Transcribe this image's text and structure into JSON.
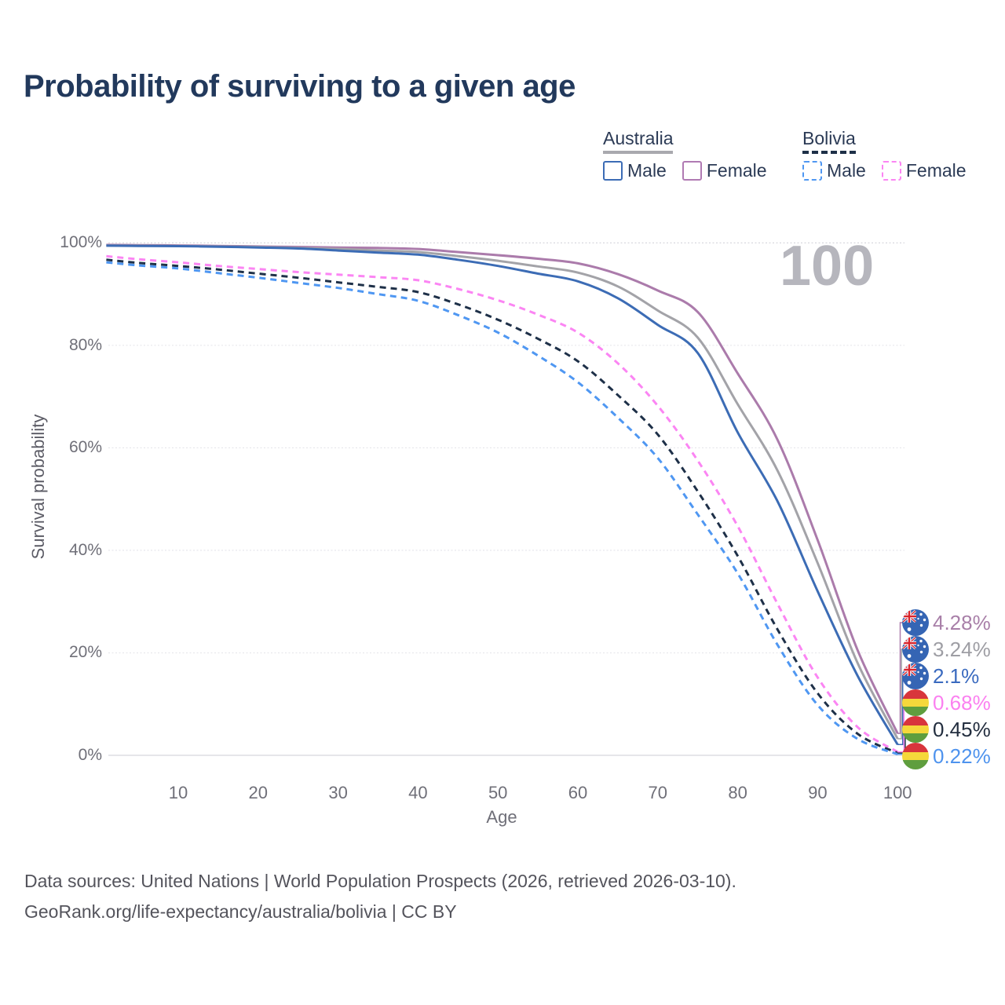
{
  "title": "Probability of surviving to a given age",
  "watermark": "100",
  "legend": {
    "position": "top-right",
    "groups": [
      {
        "name": "Australia",
        "underline_style": "solid",
        "underline_color": "#a9a9ae",
        "items": [
          {
            "label": "Male",
            "color": "#3c6cb5",
            "dashed": false
          },
          {
            "label": "Female",
            "color": "#b07ab3",
            "dashed": false
          }
        ]
      },
      {
        "name": "Bolivia",
        "underline_style": "dashed",
        "underline_color": "#1e3048",
        "items": [
          {
            "label": "Male",
            "color": "#4f97f2",
            "dashed": true
          },
          {
            "label": "Female",
            "color": "#fb85f3",
            "dashed": true
          }
        ]
      }
    ]
  },
  "chart_data": {
    "type": "line",
    "title": "Probability of surviving to a given age",
    "xlabel": "Age",
    "ylabel": "Survival probability",
    "xlim": [
      0,
      100
    ],
    "ylim": [
      0,
      100
    ],
    "grid": "horizontal",
    "x_ticks": [
      {
        "value": 10,
        "label": "10"
      },
      {
        "value": 20,
        "label": "20"
      },
      {
        "value": 30,
        "label": "30"
      },
      {
        "value": 40,
        "label": "40"
      },
      {
        "value": 50,
        "label": "50"
      },
      {
        "value": 60,
        "label": "60"
      },
      {
        "value": 70,
        "label": "70"
      },
      {
        "value": 80,
        "label": "80"
      },
      {
        "value": 90,
        "label": "90"
      },
      {
        "value": 100,
        "label": "100"
      }
    ],
    "y_ticks": [
      {
        "value": 0,
        "label": "0%"
      },
      {
        "value": 20,
        "label": "20%"
      },
      {
        "value": 40,
        "label": "40%"
      },
      {
        "value": 60,
        "label": "60%"
      },
      {
        "value": 80,
        "label": "80%"
      },
      {
        "value": 100,
        "label": "100%"
      }
    ],
    "x": [
      1,
      5,
      10,
      15,
      20,
      25,
      30,
      35,
      40,
      45,
      50,
      55,
      60,
      65,
      70,
      75,
      80,
      85,
      90,
      95,
      100
    ],
    "series": [
      {
        "name": "Australia Female",
        "color": "#ab7bab",
        "dashed": false,
        "flag": "australia",
        "end_label": "4.28%",
        "end_label_color": "#a87fa8",
        "values": [
          99.6,
          99.55,
          99.5,
          99.4,
          99.3,
          99.2,
          99.1,
          99.0,
          98.8,
          98.2,
          97.6,
          96.9,
          96.0,
          93.9,
          90.7,
          86.5,
          74.5,
          61.5,
          42.0,
          20.5,
          4.28
        ]
      },
      {
        "name": "Australia Both sexes",
        "color": "#a3a3a8",
        "dashed": false,
        "flag": "australia",
        "end_label": "3.24%",
        "end_label_color": "#9e9ea4",
        "values": [
          99.5,
          99.45,
          99.4,
          99.3,
          99.2,
          99.0,
          98.8,
          98.5,
          98.2,
          97.4,
          96.5,
          95.4,
          94.2,
          91.5,
          86.8,
          81.5,
          68.5,
          55.5,
          37.5,
          18.0,
          3.24
        ]
      },
      {
        "name": "Australia Male",
        "color": "#3c6cb5",
        "dashed": false,
        "flag": "australia",
        "end_label": "2.1%",
        "end_label_color": "#3a6abf",
        "values": [
          99.45,
          99.4,
          99.35,
          99.25,
          99.1,
          98.9,
          98.5,
          98.1,
          97.7,
          96.7,
          95.5,
          94.0,
          92.5,
          89.2,
          84.0,
          78.5,
          63.0,
          49.5,
          32.0,
          15.5,
          2.1
        ]
      },
      {
        "name": "Bolivia Female",
        "color": "#fb85f3",
        "dashed": true,
        "flag": "bolivia",
        "end_label": "0.68%",
        "end_label_color": "#fb80f0",
        "values": [
          97.4,
          96.8,
          96.2,
          95.5,
          94.9,
          94.3,
          93.8,
          93.3,
          92.7,
          91.0,
          88.8,
          86.0,
          82.5,
          76.5,
          68.2,
          57.5,
          44.7,
          29.5,
          15.2,
          5.5,
          0.68
        ]
      },
      {
        "name": "Bolivia Both sexes",
        "color": "#1e3048",
        "dashed": true,
        "flag": "bolivia",
        "end_label": "0.45%",
        "end_label_color": "#232e3f",
        "values": [
          96.7,
          96.1,
          95.5,
          94.8,
          94.0,
          93.2,
          92.3,
          91.4,
          90.4,
          88.0,
          85.0,
          81.3,
          76.9,
          70.3,
          62.6,
          51.5,
          38.9,
          24.5,
          12.1,
          4.2,
          0.45
        ]
      },
      {
        "name": "Bolivia Male",
        "color": "#4f97f2",
        "dashed": true,
        "flag": "bolivia",
        "end_label": "0.22%",
        "end_label_color": "#4e93ee",
        "values": [
          96.2,
          95.6,
          95.0,
          94.1,
          93.2,
          92.2,
          91.2,
          90.0,
          88.7,
          85.9,
          82.5,
          78.0,
          72.8,
          65.9,
          58.0,
          47.0,
          35.5,
          21.5,
          9.8,
          3.2,
          0.22
        ]
      }
    ],
    "annotation": "100"
  },
  "flag_colors": {
    "australia_blue": "#3565b4",
    "jack_red": "#d8242c",
    "bolivia_red": "#d8353c",
    "bolivia_yellow": "#f5d83b",
    "bolivia_green": "#5f9e3e"
  },
  "footer": {
    "line1": "Data sources: United Nations | World Population Prospects (2026, retrieved 2026-03-10).",
    "line2": "GeoRank.org/life-expectancy/australia/bolivia | CC BY"
  }
}
